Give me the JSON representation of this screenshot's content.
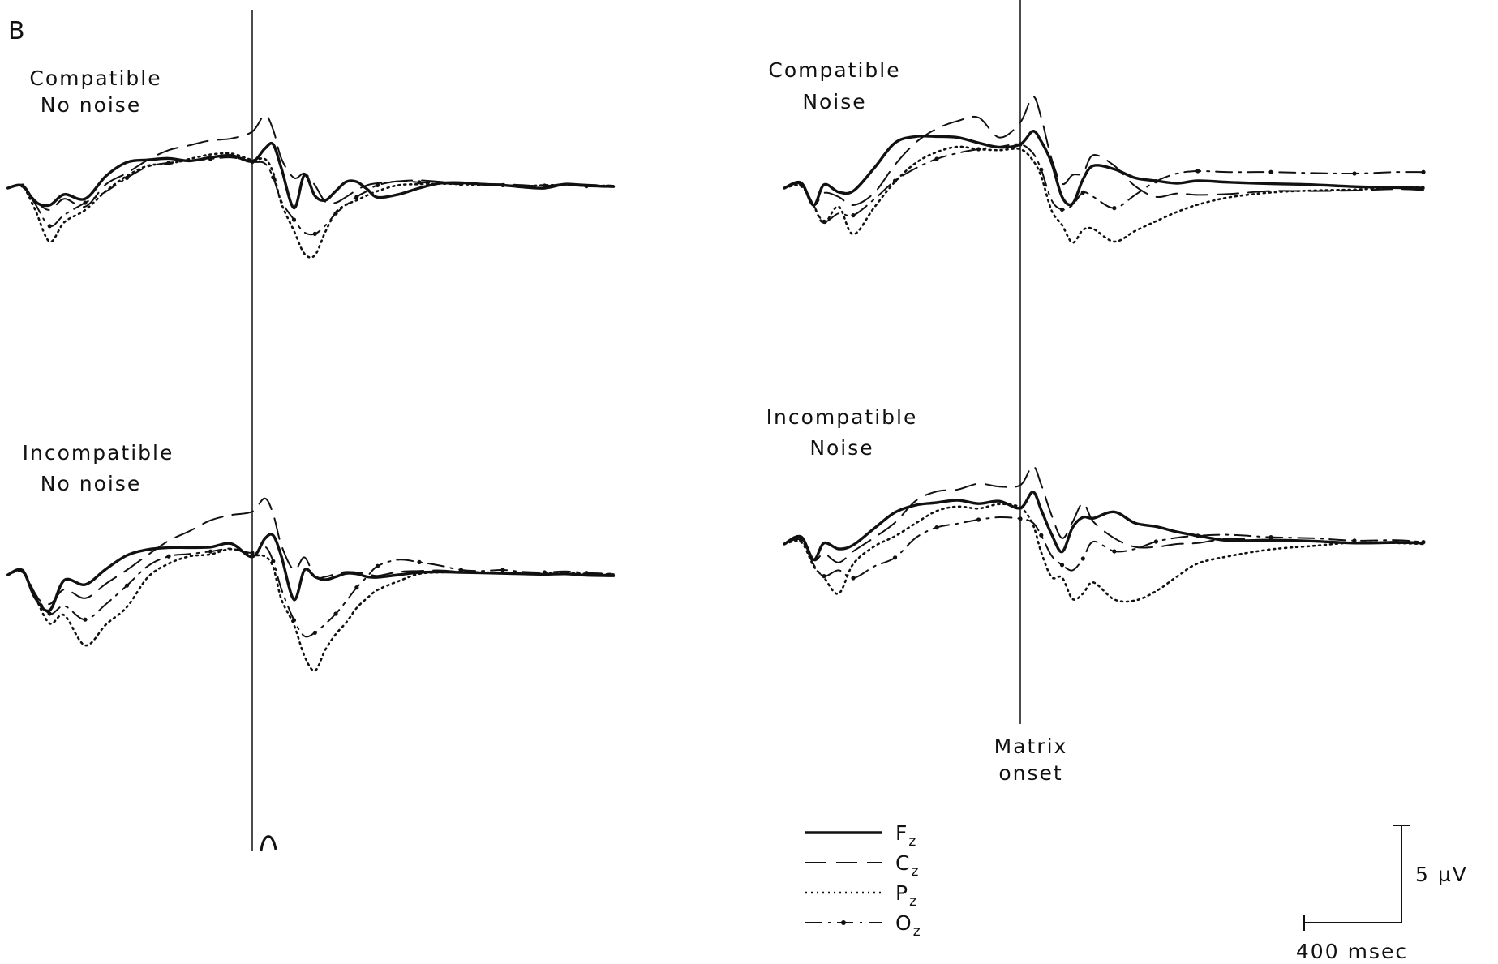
{
  "figure": {
    "panel_label": "B"
  },
  "onset_label": [
    "Matrix",
    "onset"
  ],
  "scale_bar": {
    "voltage_label": "5 µV",
    "time_label": "400 msec",
    "voltage_uv": 5,
    "time_ms": 400
  },
  "series_styles": {
    "Fz": {
      "dash": "none",
      "width": 3.4
    },
    "Cz": {
      "dash": "26 12",
      "width": 2.0
    },
    "Pz": {
      "dash": "2 5",
      "width": 2.6
    },
    "Oz": {
      "dash": "20 8 3 8",
      "width": 2.0
    }
  },
  "legend": [
    {
      "series": "Fz",
      "letter": "F",
      "sub": "z"
    },
    {
      "series": "Cz",
      "letter": "C",
      "sub": "z"
    },
    {
      "series": "Pz",
      "letter": "P",
      "sub": "z"
    },
    {
      "series": "Oz",
      "letter": "O",
      "sub": "z"
    }
  ],
  "chart_data": [
    {
      "type": "line",
      "title": [
        "Compatible",
        "No noise"
      ],
      "xlabel": "",
      "ylabel": "",
      "x_unit": "msec",
      "y_unit": "µV",
      "polarity": "negative up",
      "xlim": [
        -1170,
        1730
      ],
      "onset_ms": 0,
      "x": [
        -1170,
        -1100,
        -1040,
        -970,
        -900,
        -800,
        -700,
        -600,
        -500,
        -400,
        -300,
        -200,
        -100,
        0,
        60,
        100,
        140,
        200,
        250,
        300,
        350,
        400,
        450,
        500,
        550,
        600,
        700,
        800,
        900,
        1000,
        1100,
        1200,
        1300,
        1400,
        1500,
        1600,
        1730
      ],
      "series": [
        {
          "name": "Fz",
          "values": [
            0.0,
            0.5,
            -2.8,
            -3.5,
            -1.3,
            -2.2,
            2.5,
            5.3,
            5.8,
            6.1,
            5.6,
            6.3,
            6.7,
            5.5,
            8.1,
            9.0,
            4.0,
            -4.1,
            2.7,
            -1.6,
            -2.5,
            -0.6,
            1.3,
            1.3,
            -0.2,
            -1.9,
            -1.3,
            0.0,
            1.0,
            1.1,
            0.8,
            0.6,
            0.2,
            0.0,
            0.8,
            0.5,
            0.3
          ]
        },
        {
          "name": "Cz",
          "values": [
            0.0,
            0.5,
            -2.5,
            -4.5,
            -2.2,
            -3.8,
            0.8,
            3.1,
            5.8,
            7.8,
            8.8,
            9.8,
            10.2,
            11.6,
            15.0,
            12.0,
            6.0,
            2.1,
            3.0,
            0.6,
            -2.8,
            -3.0,
            -1.8,
            -0.4,
            0.6,
            1.0,
            1.4,
            1.6,
            1.3,
            1.1,
            0.8,
            0.8,
            0.6,
            0.4,
            0.9,
            0.7,
            0.5
          ]
        },
        {
          "name": "Pz",
          "values": [
            0.0,
            0.3,
            -4.4,
            -11.0,
            -7.0,
            -4.5,
            -0.6,
            2.5,
            4.6,
            5.0,
            6.0,
            6.9,
            7.1,
            5.8,
            6.0,
            3.2,
            -3.2,
            -8.8,
            -13.5,
            -13.8,
            -9.0,
            -5.0,
            -3.4,
            -2.5,
            -1.5,
            -0.6,
            0.6,
            0.8,
            0.9,
            0.8,
            0.6,
            0.6,
            0.4,
            0.6,
            0.6,
            0.5,
            0.5
          ]
        },
        {
          "name": "Oz",
          "values": [
            0.0,
            0.5,
            -3.2,
            -7.8,
            -5.5,
            -3.0,
            -0.7,
            2.1,
            4.4,
            5.2,
            5.6,
            6.0,
            6.3,
            5.4,
            5.1,
            2.2,
            -2.7,
            -6.5,
            -9.1,
            -9.4,
            -7.7,
            -5.2,
            -3.5,
            -1.8,
            -0.6,
            0.6,
            1.4,
            1.2,
            1.0,
            0.8,
            0.9,
            0.6,
            0.5,
            0.5,
            0.6,
            0.4,
            0.3
          ]
        }
      ]
    },
    {
      "type": "line",
      "title": [
        "Compatible",
        "Noise"
      ],
      "xlabel": "",
      "ylabel": "",
      "x_unit": "msec",
      "y_unit": "µV",
      "polarity": "negative up",
      "xlim": [
        -1130,
        1930
      ],
      "onset_ms": 0,
      "x": [
        -1130,
        -1050,
        -990,
        -940,
        -870,
        -800,
        -700,
        -600,
        -500,
        -400,
        -300,
        -200,
        -100,
        0,
        60,
        100,
        150,
        200,
        250,
        300,
        350,
        450,
        550,
        650,
        750,
        850,
        1000,
        1200,
        1400,
        1600,
        1800,
        1930
      ],
      "series": [
        {
          "name": "Fz",
          "values": [
            0.0,
            1.1,
            -3.5,
            0.7,
            -0.8,
            -0.6,
            4.1,
            9.3,
            10.6,
            10.6,
            10.4,
            9.3,
            8.4,
            9.0,
            11.7,
            9.6,
            5.2,
            -1.8,
            -3.2,
            1.8,
            4.6,
            3.9,
            2.1,
            1.5,
            1.0,
            1.5,
            1.2,
            0.9,
            0.7,
            0.3,
            0.1,
            0.0
          ]
        },
        {
          "name": "Cz",
          "values": [
            0.0,
            1.1,
            -3.5,
            -1.0,
            -1.8,
            -3.5,
            -1.0,
            4.8,
            9.4,
            12.2,
            13.8,
            14.5,
            10.4,
            13.5,
            18.8,
            14.5,
            6.0,
            0.9,
            2.7,
            3.1,
            6.8,
            4.6,
            0.4,
            -1.8,
            -1.1,
            -1.4,
            -1.2,
            -0.6,
            -0.6,
            -0.5,
            -0.2,
            -0.4
          ]
        },
        {
          "name": "Pz",
          "values": [
            0.0,
            0.4,
            -3.6,
            -7.2,
            -3.8,
            -9.5,
            -4.0,
            1.3,
            5.2,
            7.4,
            8.5,
            8.0,
            7.8,
            8.0,
            5.7,
            2.4,
            -4.6,
            -7.6,
            -11.2,
            -8.6,
            -8.4,
            -11.0,
            -8.8,
            -6.8,
            -4.9,
            -3.4,
            -1.9,
            -0.9,
            -0.5,
            -0.3,
            0.1,
            0.2
          ]
        },
        {
          "name": "Oz",
          "values": [
            0.0,
            0.8,
            -3.5,
            -6.9,
            -5.2,
            -5.6,
            -2.3,
            1.5,
            4.1,
            6.0,
            7.2,
            8.0,
            8.5,
            9.0,
            7.2,
            3.8,
            -2.5,
            -4.4,
            -3.5,
            -0.9,
            -1.8,
            -4.1,
            -1.4,
            1.4,
            3.0,
            3.5,
            3.3,
            3.3,
            3.1,
            3.0,
            3.3,
            3.3
          ]
        }
      ]
    },
    {
      "type": "line",
      "title": [
        "Incompatible",
        "No noise"
      ],
      "xlabel": "",
      "ylabel": "",
      "x_unit": "msec",
      "y_unit": "µV",
      "polarity": "negative up",
      "xlim": [
        -1170,
        1730
      ],
      "onset_ms": 0,
      "x": [
        -1170,
        -1100,
        -1040,
        -970,
        -900,
        -800,
        -700,
        -600,
        -500,
        -400,
        -300,
        -200,
        -100,
        0,
        60,
        100,
        140,
        200,
        250,
        300,
        350,
        400,
        450,
        500,
        550,
        600,
        700,
        800,
        900,
        1000,
        1100,
        1200,
        1300,
        1400,
        1500,
        1600,
        1730
      ],
      "series": [
        {
          "name": "Fz",
          "values": [
            0.0,
            0.9,
            -4.7,
            -7.3,
            -1.1,
            -2.0,
            1.2,
            4.0,
            5.2,
            5.6,
            5.6,
            5.7,
            6.4,
            3.7,
            7.4,
            8.1,
            3.7,
            -5.1,
            1.0,
            -0.4,
            -1.0,
            -0.4,
            0.3,
            0.2,
            -0.4,
            -0.5,
            0.0,
            0.5,
            0.6,
            0.5,
            0.4,
            0.3,
            0.2,
            0.1,
            0.2,
            -0.1,
            -0.2
          ]
        },
        {
          "name": "Cz",
          "values": [
            0.0,
            1.0,
            -4.2,
            -6.0,
            -3.0,
            -4.8,
            -1.8,
            1.0,
            4.1,
            7.0,
            9.0,
            11.2,
            12.3,
            13.0,
            15.7,
            12.5,
            6.0,
            1.0,
            3.6,
            -0.4,
            -0.4,
            0.2,
            0.6,
            0.5,
            0.2,
            -0.2,
            0.6,
            0.8,
            0.9,
            0.6,
            0.4,
            0.3,
            0.3,
            0.2,
            0.3,
            0.1,
            0.0
          ]
        },
        {
          "name": "Pz",
          "values": [
            0.0,
            0.6,
            -4.5,
            -10.0,
            -8.3,
            -14.5,
            -10.2,
            -6.6,
            -0.5,
            2.3,
            3.8,
            4.2,
            5.3,
            4.1,
            3.8,
            1.6,
            -5.1,
            -10.3,
            -16.7,
            -19.7,
            -15.4,
            -12.2,
            -9.8,
            -6.8,
            -4.8,
            -3.1,
            -1.3,
            0.2,
            0.5,
            0.6,
            0.5,
            0.4,
            0.2,
            0.3,
            0.4,
            0.2,
            0.1
          ]
        },
        {
          "name": "Oz",
          "values": [
            0.0,
            0.8,
            -3.8,
            -8.0,
            -6.4,
            -9.2,
            -6.0,
            -2.2,
            1.8,
            3.8,
            4.3,
            4.8,
            5.4,
            4.5,
            5.8,
            2.8,
            -3.0,
            -9.3,
            -12.6,
            -11.9,
            -10.1,
            -8.0,
            -5.4,
            -2.6,
            -0.4,
            1.8,
            3.1,
            2.6,
            1.9,
            1.0,
            0.8,
            1.0,
            0.6,
            0.5,
            0.7,
            0.4,
            0.2
          ]
        }
      ]
    },
    {
      "type": "line",
      "title": [
        "Incompatible",
        "Noise"
      ],
      "xlabel": "",
      "ylabel": "",
      "x_unit": "msec",
      "y_unit": "µV",
      "polarity": "negative up",
      "xlim": [
        -1130,
        1930
      ],
      "onset_ms": 0,
      "x": [
        -1130,
        -1050,
        -990,
        -940,
        -870,
        -800,
        -700,
        -600,
        -500,
        -400,
        -300,
        -200,
        -100,
        0,
        60,
        100,
        150,
        200,
        250,
        300,
        350,
        450,
        550,
        650,
        750,
        850,
        1000,
        1200,
        1400,
        1600,
        1800,
        1930
      ],
      "series": [
        {
          "name": "Fz",
          "values": [
            0.0,
            1.5,
            -3.2,
            0.2,
            -1.0,
            -0.2,
            3.2,
            6.5,
            8.0,
            8.5,
            9.0,
            8.3,
            8.8,
            7.4,
            10.7,
            7.0,
            2.0,
            -1.6,
            3.4,
            5.5,
            5.3,
            6.6,
            4.3,
            3.6,
            2.5,
            1.7,
            0.7,
            0.8,
            0.6,
            0.2,
            0.3,
            0.2
          ]
        },
        {
          "name": "Cz",
          "values": [
            0.0,
            1.2,
            -3.3,
            -2.0,
            -3.8,
            -1.5,
            1.3,
            4.4,
            8.9,
            10.8,
            11.2,
            12.4,
            11.8,
            12.1,
            16.0,
            12.2,
            5.9,
            1.2,
            4.5,
            8.4,
            4.6,
            1.2,
            -0.6,
            -0.6,
            0.0,
            0.2,
            1.1,
            0.6,
            0.5,
            0.2,
            0.5,
            0.3
          ]
        },
        {
          "name": "Pz",
          "values": [
            0.0,
            0.4,
            -4.5,
            -6.9,
            -10.2,
            -4.1,
            -0.5,
            1.6,
            4.3,
            6.8,
            7.7,
            7.3,
            8.2,
            7.5,
            4.0,
            -1.7,
            -6.8,
            -6.9,
            -11.3,
            -10.2,
            -7.9,
            -11.4,
            -11.6,
            -9.7,
            -6.7,
            -4.0,
            -2.5,
            -1.1,
            -0.4,
            0.3,
            0.2,
            0.0
          ]
        },
        {
          "name": "Oz",
          "values": [
            0.0,
            0.8,
            -4.2,
            -6.6,
            -5.4,
            -7.0,
            -4.6,
            -2.8,
            1.3,
            3.4,
            4.2,
            5.0,
            5.5,
            5.2,
            4.4,
            1.8,
            -2.4,
            -4.3,
            -5.4,
            -3.0,
            0.5,
            -1.5,
            -1.0,
            0.5,
            1.3,
            1.7,
            1.9,
            1.4,
            1.2,
            0.7,
            0.8,
            0.4
          ]
        }
      ]
    }
  ]
}
